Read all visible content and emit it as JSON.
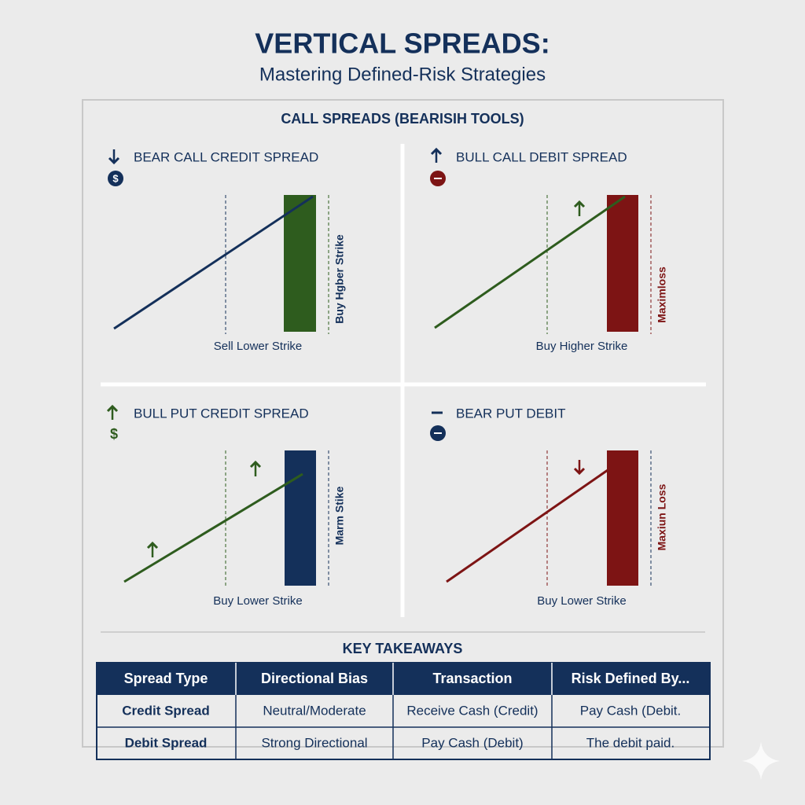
{
  "header": {
    "title": "VERTICAL SPREADS:",
    "subtitle": "Mastering Defined-Risk Strategies"
  },
  "section_title": "CALL SPREADS (BEARISIH TOOLS)",
  "panels": [
    {
      "title": "BEAR CALL CREDIT SPREAD",
      "icon": "$",
      "label_bottom": "Sell Lower Strike",
      "label_side": "Buy Hgber Strike"
    },
    {
      "title": "BULL CALL DEBIT SPREAD",
      "label_bottom": "Buy Higher Strike",
      "label_side": "Maximloss"
    },
    {
      "title": "BULL PUT CREDIT SPREAD",
      "icon": "$",
      "label_bottom": "Buy Lower Strike",
      "label_side": "Marm Stike"
    },
    {
      "title": "BEAR PUT DEBIT",
      "label_bottom": "Buy Lower Strike",
      "label_side": "Maxiun Loss"
    }
  ],
  "takeaways": {
    "title": "KEY TAKEAWAYS",
    "headers": [
      "Spread Type",
      "Directional Bias",
      "Transaction",
      "Risk Defined By..."
    ],
    "rows": [
      [
        "Credit Spread",
        "Neutral/Moderate",
        "Receive Cash (Credit)",
        "Pay Cash (Debit."
      ],
      [
        "Debit Spread",
        "Strong Directional",
        "Pay Cash (Debit)",
        "The debit paid."
      ]
    ]
  }
}
